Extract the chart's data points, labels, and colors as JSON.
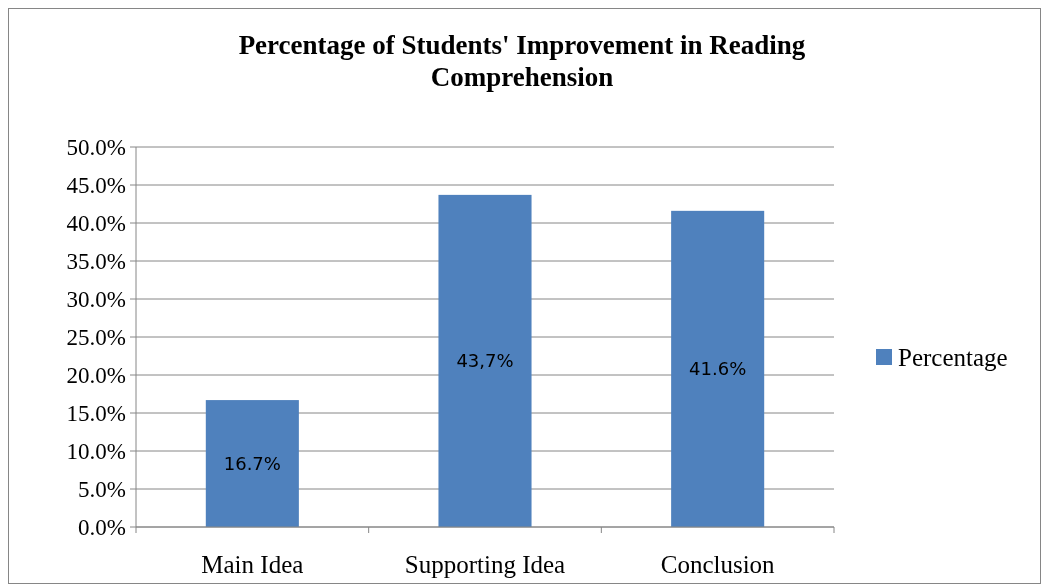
{
  "chart_data": {
    "type": "bar",
    "title": "Percentage of Students' Improvement in Reading Comprehension",
    "categories": [
      "Main Idea",
      "Supporting Idea",
      "Conclusion"
    ],
    "series": [
      {
        "name": "Percentage",
        "color": "#4f81bd",
        "values": [
          16.7,
          43.7,
          41.6
        ],
        "value_labels": [
          "16.7%",
          "43,7%",
          "41.6%"
        ]
      }
    ],
    "ylim": [
      0,
      50
    ],
    "yticks": [
      {
        "value": 0,
        "label": "0.0%"
      },
      {
        "value": 5,
        "label": "5.0%"
      },
      {
        "value": 10,
        "label": "10.0%"
      },
      {
        "value": 15,
        "label": "15.0%"
      },
      {
        "value": 20,
        "label": "20.0%"
      },
      {
        "value": 25,
        "label": "25.0%"
      },
      {
        "value": 30,
        "label": "30.0%"
      },
      {
        "value": 35,
        "label": "35.0%"
      },
      {
        "value": 40,
        "label": "40.0%"
      },
      {
        "value": 45,
        "label": "45.0%"
      },
      {
        "value": 50,
        "label": "50.0%"
      }
    ],
    "grid": "y",
    "legend": "right"
  }
}
